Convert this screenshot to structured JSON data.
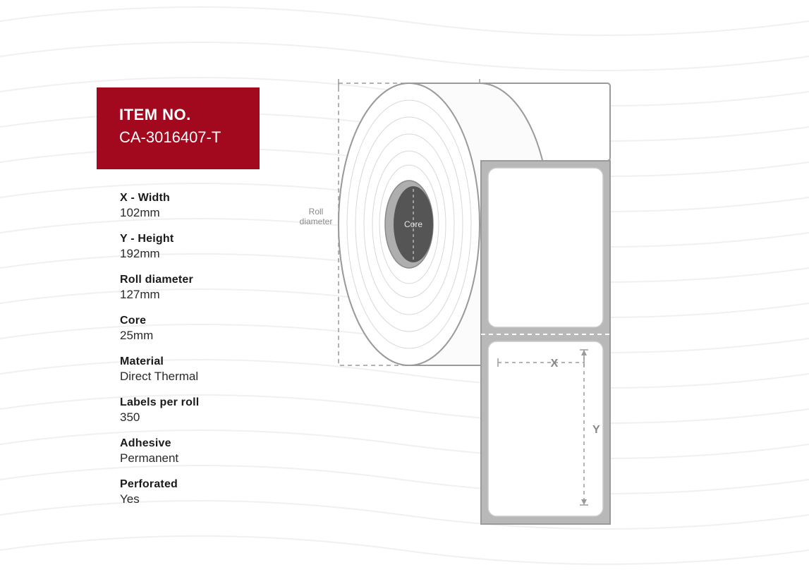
{
  "item": {
    "header": "ITEM NO.",
    "number": "CA-3016407-T",
    "box_bg": "#a3091e"
  },
  "specs": [
    {
      "label": "X - Width",
      "value": "102mm"
    },
    {
      "label": "Y - Height",
      "value": "192mm"
    },
    {
      "label": "Roll diameter",
      "value": "127mm"
    },
    {
      "label": "Core",
      "value": "25mm"
    },
    {
      "label": "Material",
      "value": "Direct Thermal"
    },
    {
      "label": "Labels per roll",
      "value": "350"
    },
    {
      "label": "Adhesive",
      "value": "Permanent"
    },
    {
      "label": "Perforated",
      "value": "Yes"
    }
  ],
  "diagram": {
    "roll_diameter_label_1": "Roll",
    "roll_diameter_label_2": "diameter",
    "core_label": "Core",
    "x_label": "X",
    "y_label": "Y",
    "colors": {
      "stroke": "#9a9a9a",
      "dash": "#9a9a9a",
      "fill_side": "#fdfdfd",
      "fill_top": "#ffffff",
      "core_fill": "#5a5a5a",
      "label_bg": "#b8b8b8",
      "label_fill": "#ffffff",
      "wave": "#f2f2f2"
    }
  }
}
